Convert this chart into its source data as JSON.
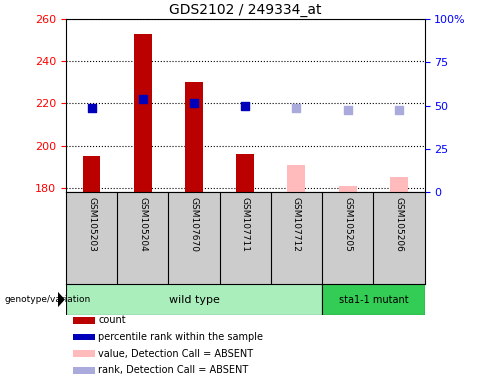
{
  "title": "GDS2102 / 249334_at",
  "samples": [
    "GSM105203",
    "GSM105204",
    "GSM107670",
    "GSM107711",
    "GSM107712",
    "GSM105205",
    "GSM105206"
  ],
  "count_values": [
    195,
    253,
    230,
    196,
    null,
    null,
    null
  ],
  "count_absent_values": [
    null,
    null,
    null,
    null,
    191,
    181,
    185
  ],
  "percentile_values": [
    218,
    222,
    220,
    219,
    null,
    null,
    null
  ],
  "percentile_absent_values": [
    null,
    null,
    null,
    null,
    218,
    217,
    217
  ],
  "ylim_left": [
    178,
    260
  ],
  "ylim_right": [
    0,
    100
  ],
  "yticks_left": [
    180,
    200,
    220,
    240,
    260
  ],
  "ytick_labels_left": [
    "180",
    "200",
    "220",
    "240",
    "260"
  ],
  "yticks_right": [
    0,
    25,
    50,
    75,
    100
  ],
  "ytick_labels_right": [
    "0",
    "25",
    "50",
    "75",
    "100%"
  ],
  "bar_color_present": "#bb0000",
  "bar_color_absent": "#ffbbbb",
  "dot_color_present": "#0000bb",
  "dot_color_absent": "#aaaadd",
  "wt_color_light": "#aaeebb",
  "wt_color_dark": "#33cc55",
  "legend_items": [
    {
      "label": "count",
      "color": "#bb0000"
    },
    {
      "label": "percentile rank within the sample",
      "color": "#0000bb"
    },
    {
      "label": "value, Detection Call = ABSENT",
      "color": "#ffbbbb"
    },
    {
      "label": "rank, Detection Call = ABSENT",
      "color": "#aaaadd"
    }
  ],
  "bar_width": 0.35,
  "dot_size": 40,
  "n_wt": 5,
  "n_mut": 2
}
